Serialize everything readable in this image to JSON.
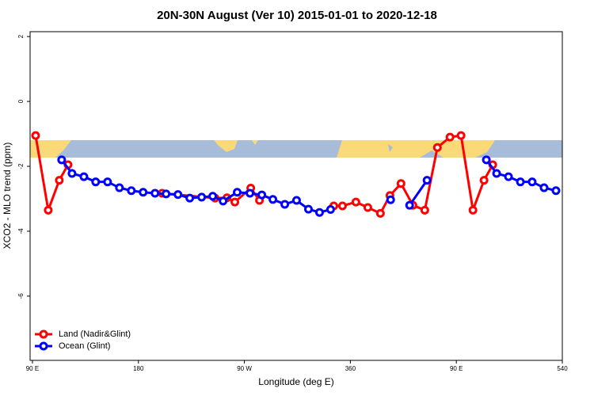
{
  "chart_data": {
    "type": "line",
    "title": "20N-30N August (Ver 10)   2015-01-01 to 2020-12-18",
    "xlabel": "Longitude (deg E)",
    "ylabel": "XCO2 - MLO trend (ppm)",
    "xlim": [
      88,
      540
    ],
    "ylim": [
      -7.98,
      2.15
    ],
    "xticks": [
      {
        "value": 90,
        "label": "90 E"
      },
      180,
      {
        "value": 270,
        "label": "90 W"
      },
      360,
      {
        "value": 450,
        "label": "90 E"
      },
      540
    ],
    "yticks": [
      2,
      0,
      -2,
      -4,
      -6
    ],
    "legend": "bottomleft",
    "series": [
      {
        "name": "Land (Nadir&Glint)",
        "color": "#ff0000",
        "x": [
          92.7,
          103.4,
          112.8,
          120.2,
          null,
          200.1,
          245.1,
          255.2,
          261.9,
          275.4,
          282.8,
          null,
          345.9,
          353.3,
          364.7,
          374.8,
          385.5,
          393.6,
          403.0,
          413.1,
          423.2,
          433.9,
          444.6,
          454.0,
          464.1,
          473.5,
          480.9
        ],
        "values": [
          -1.05,
          -3.35,
          -2.43,
          -1.95,
          null,
          -2.83,
          -2.98,
          -2.97,
          -3.1,
          -2.67,
          -3.05,
          null,
          -3.22,
          -3.22,
          -3.1,
          -3.27,
          -3.45,
          -2.9,
          -2.53,
          -3.2,
          -3.35,
          -1.42,
          -1.1,
          -1.05,
          -3.35,
          -2.43,
          -1.95
        ]
      },
      {
        "name": "Ocean (Glint)",
        "color": "#0000ff",
        "x": [
          114.8,
          123.6,
          133.7,
          143.7,
          153.8,
          163.9,
          174.0,
          184.0,
          194.1,
          203.5,
          213.6,
          223.6,
          233.7,
          243.1,
          251.9,
          263.9,
          274.7,
          284.8,
          294.2,
          304.3,
          314.3,
          324.4,
          333.8,
          343.2,
          null,
          394.2,
          null,
          410.3,
          425.1,
          null,
          475.5,
          484.2,
          494.3,
          504.4,
          514.4,
          524.5,
          534.6
        ],
        "values": [
          -1.8,
          -2.22,
          -2.32,
          -2.48,
          -2.48,
          -2.66,
          -2.75,
          -2.8,
          -2.83,
          -2.85,
          -2.87,
          -2.98,
          -2.95,
          -2.92,
          -3.07,
          -2.8,
          -2.83,
          -2.88,
          -3.02,
          -3.17,
          -3.05,
          -3.32,
          -3.42,
          -3.33,
          null,
          -3.03,
          null,
          -3.2,
          -2.43,
          null,
          -1.8,
          -2.22,
          -2.32,
          -2.48,
          -2.48,
          -2.66,
          -2.75
        ]
      }
    ]
  }
}
